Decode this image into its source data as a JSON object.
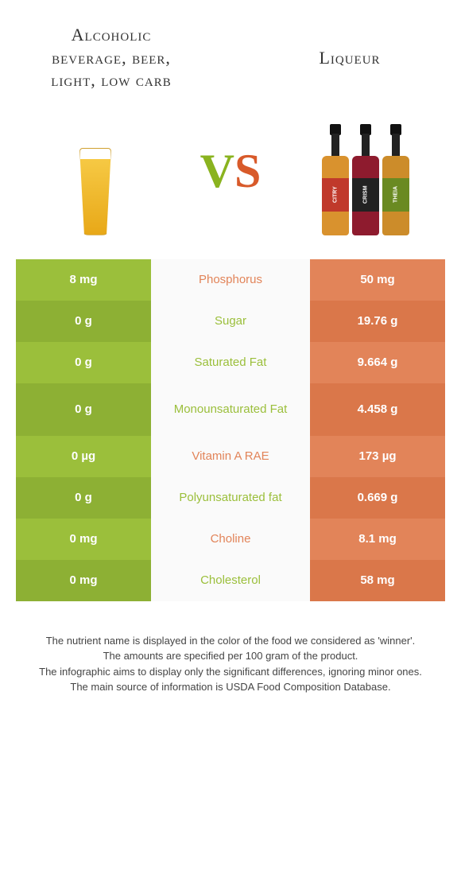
{
  "header": {
    "left_title": "Alcoholic beverage, beer, light, low carb",
    "right_title": "Liqueur"
  },
  "vs": {
    "v": "V",
    "s": "S"
  },
  "colors": {
    "left": "#9bbf3b",
    "right": "#e28459",
    "left_alt": "#8db034",
    "right_alt": "#da774a"
  },
  "bottles": [
    {
      "body_color": "#d9922e",
      "label_bg": "#c0392b",
      "label_text": "CITRY"
    },
    {
      "body_color": "#8e1b2e",
      "label_bg": "#222",
      "label_text": "CRISM"
    },
    {
      "body_color": "#cc8c2a",
      "label_bg": "#6a8a22",
      "label_text": "THEIA"
    }
  ],
  "rows": [
    {
      "left": "8 mg",
      "mid": "Phosphorus",
      "right": "50 mg",
      "winner": "right",
      "tall": false
    },
    {
      "left": "0 g",
      "mid": "Sugar",
      "right": "19.76 g",
      "winner": "left",
      "tall": false
    },
    {
      "left": "0 g",
      "mid": "Saturated Fat",
      "right": "9.664 g",
      "winner": "left",
      "tall": false
    },
    {
      "left": "0 g",
      "mid": "Monounsaturated Fat",
      "right": "4.458 g",
      "winner": "left",
      "tall": true
    },
    {
      "left": "0 µg",
      "mid": "Vitamin A RAE",
      "right": "173 µg",
      "winner": "right",
      "tall": false
    },
    {
      "left": "0 g",
      "mid": "Polyunsaturated fat",
      "right": "0.669 g",
      "winner": "left",
      "tall": false
    },
    {
      "left": "0 mg",
      "mid": "Choline",
      "right": "8.1 mg",
      "winner": "right",
      "tall": false
    },
    {
      "left": "0 mg",
      "mid": "Cholesterol",
      "right": "58 mg",
      "winner": "left",
      "tall": false
    }
  ],
  "footer": {
    "line1": "The nutrient name is displayed in the color of the food we considered as 'winner'.",
    "line2": "The amounts are specified per 100 gram of the product.",
    "line3": "The infographic aims to display only the significant differences, ignoring minor ones.",
    "line4": "The main source of information is USDA Food Composition Database."
  }
}
